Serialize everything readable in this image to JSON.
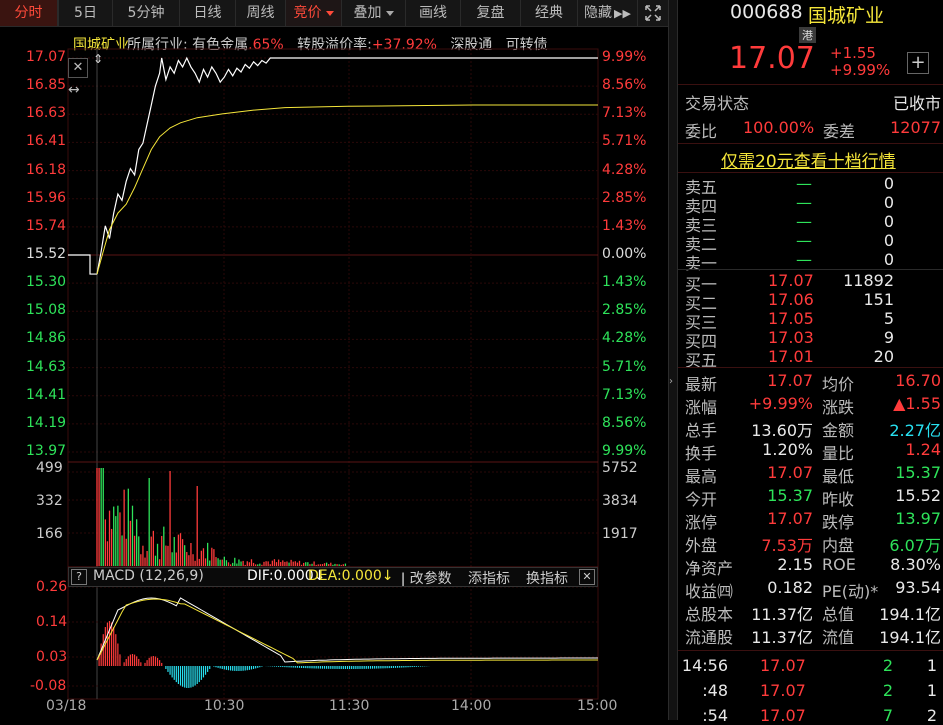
{
  "toolbar": {
    "tabs": [
      "分时",
      "5日",
      "5分钟",
      "日线",
      "周线",
      "竞价",
      "叠加",
      "画线",
      "复盘",
      "经典",
      "隐藏"
    ],
    "more_icon": "double-chevron-right-icon",
    "expand_icon": "expand-arrows-icon"
  },
  "chart": {
    "info": {
      "name": "国城矿业",
      "industry_label": "所属行业:",
      "industry": "有色金属",
      "industry_pct": ".65%",
      "premium_label": "转股溢价率:",
      "premium": "+37.92%",
      "tag1": "深股通",
      "tag2": "可转债"
    },
    "price_axis_left": [
      "17.07",
      "16.85",
      "16.63",
      "16.41",
      "16.18",
      "15.96",
      "15.74",
      "15.52",
      "15.30",
      "15.08",
      "14.86",
      "14.63",
      "14.41",
      "14.19",
      "13.97"
    ],
    "price_axis_right": [
      "9.99%",
      "8.56%",
      "7.13%",
      "5.71%",
      "4.28%",
      "2.85%",
      "1.43%",
      "0.00%",
      "1.43%",
      "2.85%",
      "4.28%",
      "5.71%",
      "7.13%",
      "8.56%",
      "9.99%"
    ],
    "volume_axis_left": [
      "499",
      "332",
      "166"
    ],
    "volume_axis_right": [
      "5752",
      "3834",
      "1917"
    ],
    "macd": {
      "title": "MACD (12,26,9)",
      "dif": "DIF:0.000",
      "dea": "DEA:0.000",
      "modify": "改参数",
      "add": "添指标",
      "swap": "换指标",
      "axis": [
        "0.26",
        "0.14",
        "0.03",
        "-0.08"
      ]
    },
    "time_axis": [
      "03/18",
      "10:30",
      "11:30",
      "14:00",
      "15:00"
    ],
    "colors": {
      "up": "#ff3b3b",
      "down": "#2ee35a",
      "price_line": "#ffffff",
      "avg_line": "#f5e63a",
      "macd_neg": "#28e0f0"
    }
  },
  "quote": {
    "code": "000688",
    "name": "国城矿业",
    "badge": "港",
    "price": "17.07",
    "change": "+1.55",
    "change_pct": "+9.99%",
    "trade_status_label": "交易状态",
    "trade_status": "已收市",
    "weibi_label": "委比",
    "weibi": "100.00%",
    "weicha_label": "委差",
    "weicha": "12077",
    "promo": "仅需20元查看十档行情",
    "asks": [
      {
        "label": "卖五",
        "price": "—",
        "vol": "0"
      },
      {
        "label": "卖四",
        "price": "—",
        "vol": "0"
      },
      {
        "label": "卖三",
        "price": "—",
        "vol": "0"
      },
      {
        "label": "卖二",
        "price": "—",
        "vol": "0"
      },
      {
        "label": "卖一",
        "price": "—",
        "vol": "0"
      }
    ],
    "bids": [
      {
        "label": "买一",
        "price": "17.07",
        "vol": "11892"
      },
      {
        "label": "买二",
        "price": "17.06",
        "vol": "151"
      },
      {
        "label": "买三",
        "price": "17.05",
        "vol": "5"
      },
      {
        "label": "买四",
        "price": "17.03",
        "vol": "9"
      },
      {
        "label": "买五",
        "price": "17.01",
        "vol": "20"
      }
    ],
    "stats": [
      {
        "l1": "最新",
        "v1": "17.07",
        "c1": "red",
        "l2": "均价",
        "v2": "16.70",
        "c2": "red"
      },
      {
        "l1": "涨幅",
        "v1": "+9.99%",
        "c1": "red",
        "l2": "涨跌",
        "v2": "▲1.55",
        "c2": "red"
      },
      {
        "l1": "总手",
        "v1": "13.60万",
        "c1": "white",
        "l2": "金额",
        "v2": "2.27亿",
        "c2": "cyan"
      },
      {
        "l1": "换手",
        "v1": "1.20%",
        "c1": "white",
        "l2": "量比",
        "v2": "1.24",
        "c2": "red"
      },
      {
        "l1": "最高",
        "v1": "17.07",
        "c1": "red",
        "l2": "最低",
        "v2": "15.37",
        "c2": "green"
      },
      {
        "l1": "今开",
        "v1": "15.37",
        "c1": "green",
        "l2": "昨收",
        "v2": "15.52",
        "c2": "white"
      },
      {
        "l1": "涨停",
        "v1": "17.07",
        "c1": "red",
        "l2": "跌停",
        "v2": "13.97",
        "c2": "green"
      },
      {
        "l1": "外盘",
        "v1": "7.53万",
        "c1": "red",
        "l2": "内盘",
        "v2": "6.07万",
        "c2": "green"
      },
      {
        "l1": "净资产",
        "v1": "2.15",
        "c1": "white",
        "l2": "ROE",
        "v2": "8.30%",
        "c2": "white"
      },
      {
        "l1": "收益㈣",
        "v1": "0.182",
        "c1": "white",
        "l2": "PE(动)*",
        "v2": "93.54",
        "c2": "white"
      },
      {
        "l1": "总股本",
        "v1": "11.37亿",
        "c1": "white",
        "l2": "总值",
        "v2": "194.1亿",
        "c2": "white"
      },
      {
        "l1": "流通股",
        "v1": "11.37亿",
        "c1": "white",
        "l2": "流值",
        "v2": "194.1亿",
        "c2": "white"
      }
    ],
    "ticks": [
      {
        "time": "14:56",
        "price": "17.07",
        "vol": "2",
        "num": "1"
      },
      {
        "time": ":48",
        "price": "17.07",
        "vol": "2",
        "num": "1"
      },
      {
        "time": ":54",
        "price": "17.07",
        "vol": "7",
        "num": "2"
      }
    ]
  }
}
